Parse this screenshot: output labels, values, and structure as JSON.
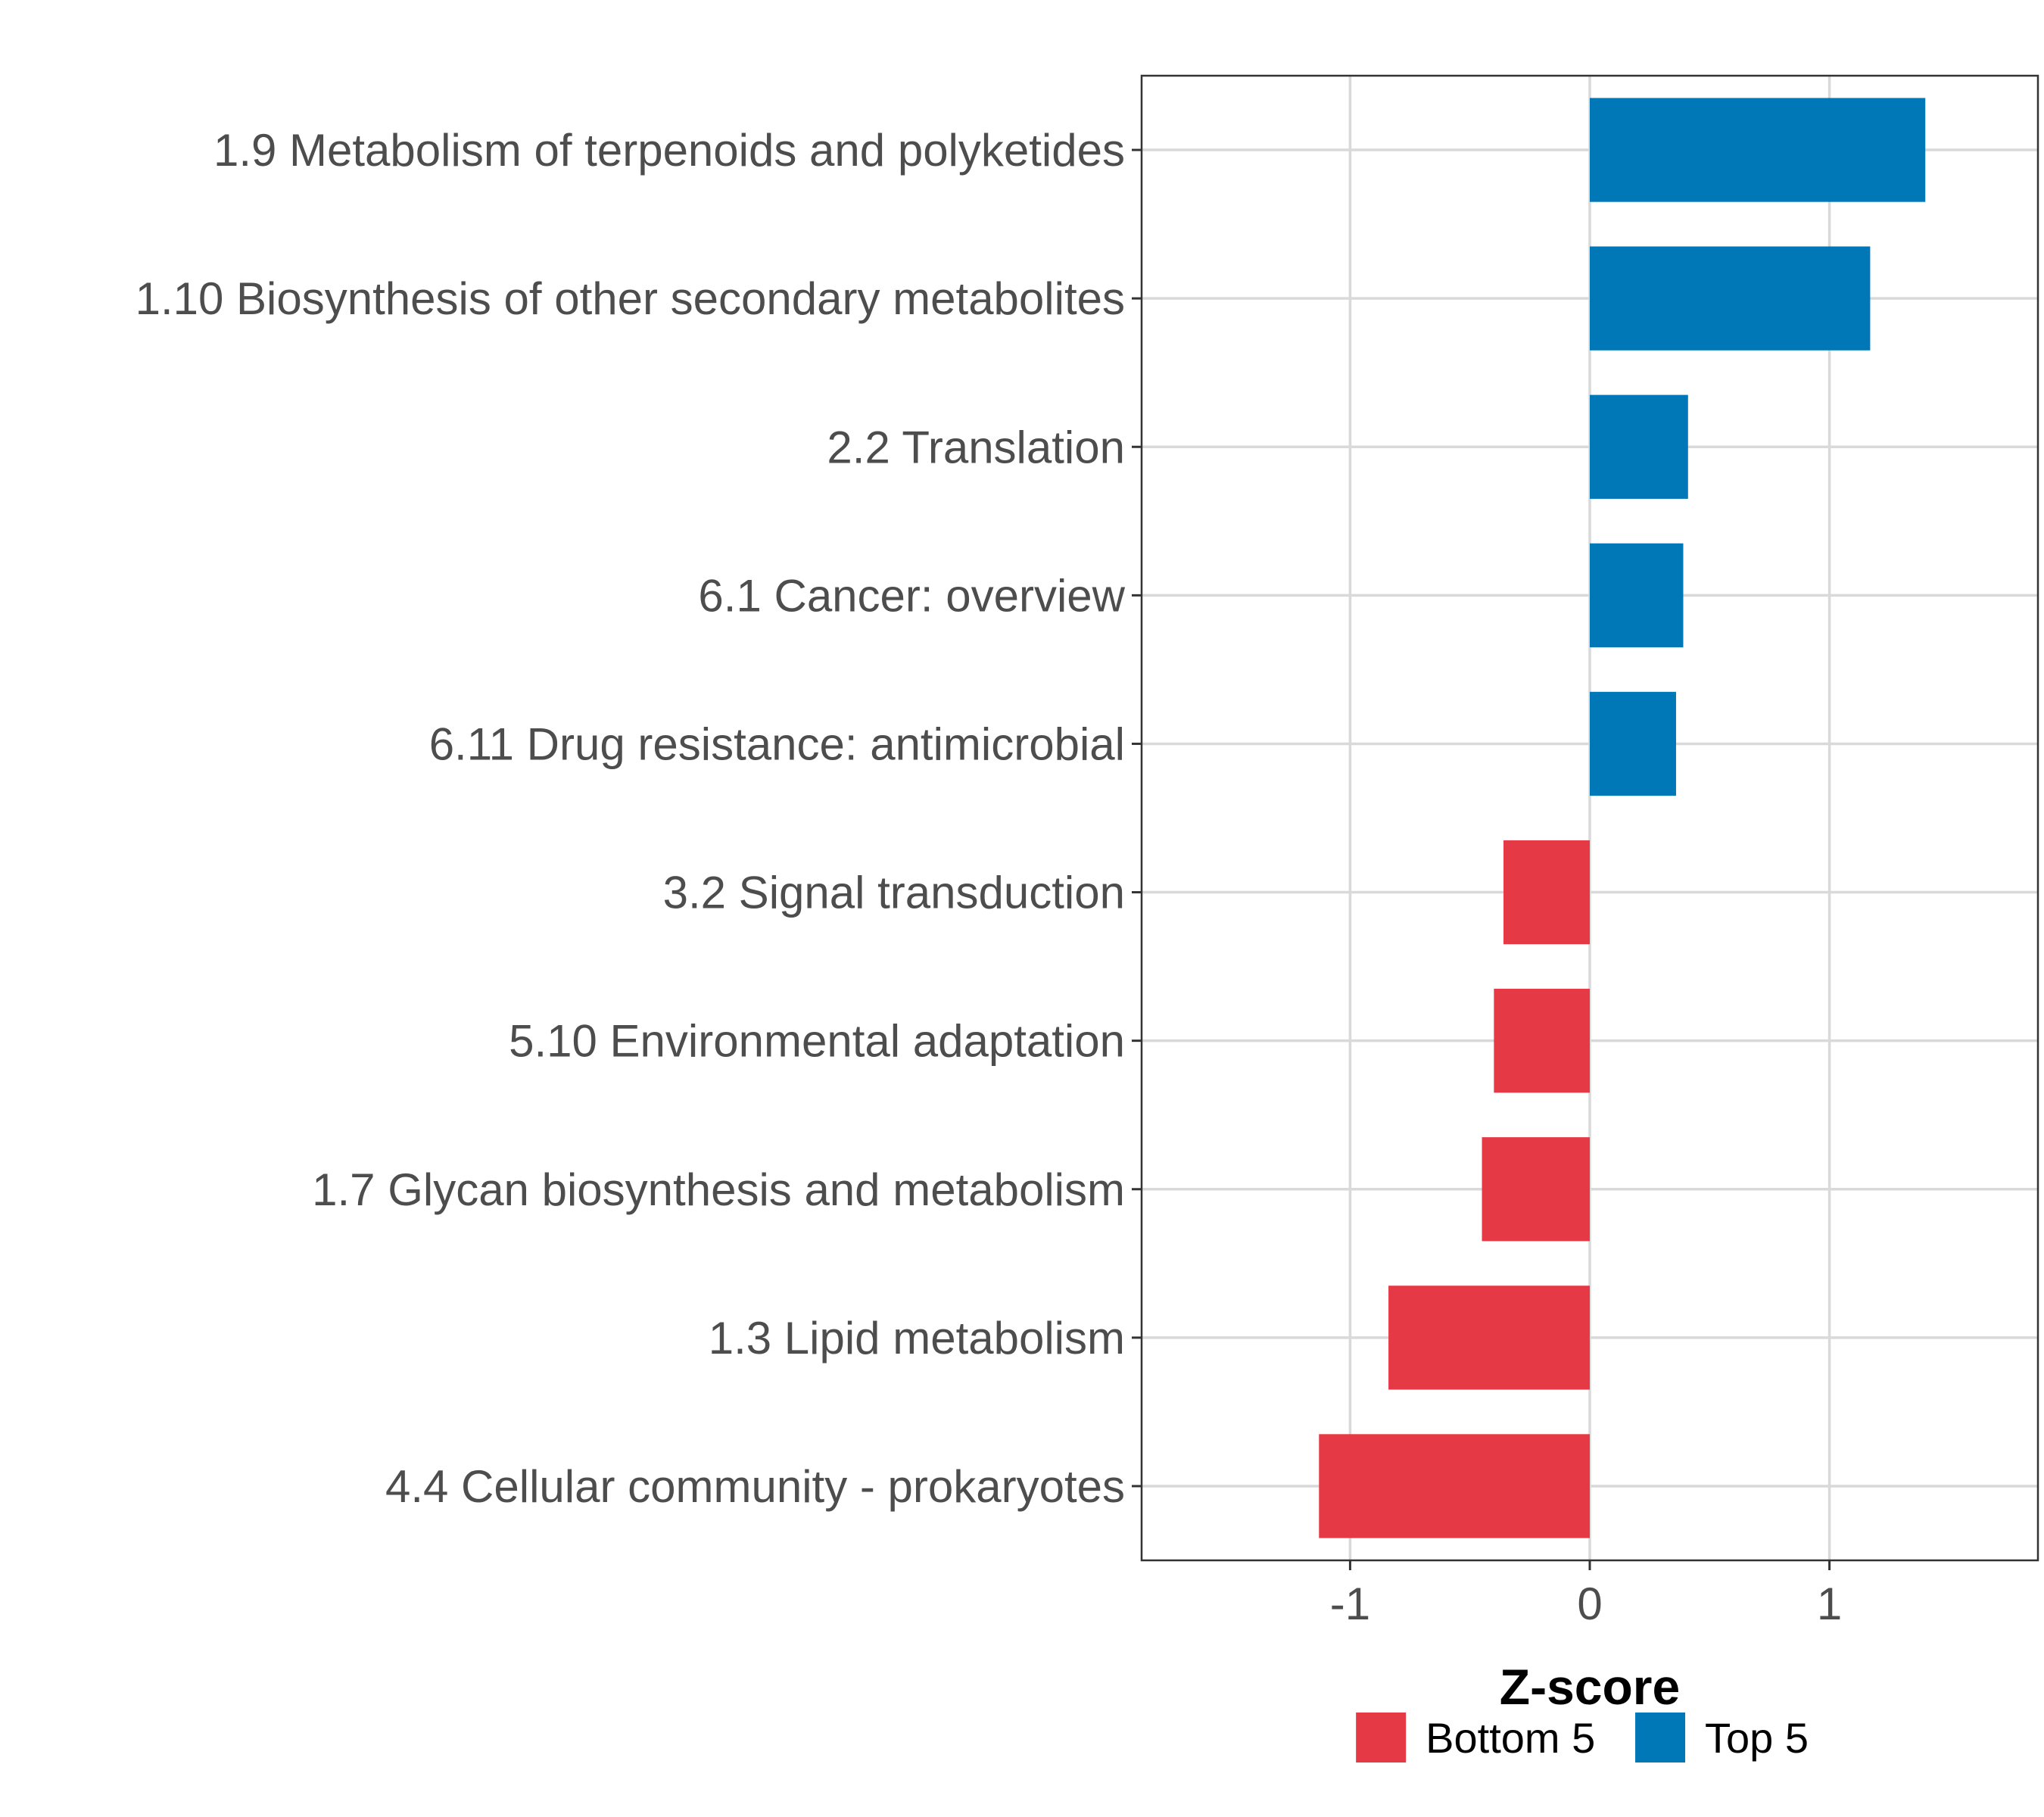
{
  "chart_data": {
    "type": "bar",
    "orientation": "horizontal",
    "title": "",
    "xlabel": "Z-score",
    "ylabel": "",
    "xlim": [
      -1.87,
      1.87
    ],
    "xticks": [
      -1,
      0,
      1
    ],
    "xtick_labels": [
      "-1",
      "0",
      "1"
    ],
    "grid": true,
    "legend_position": "bottom",
    "categories": [
      "1.9 Metabolism of terpenoids and polyketides",
      "1.10 Biosynthesis of other secondary metabolites",
      "2.2 Translation",
      "6.1 Cancer: overview",
      "6.11 Drug resistance: antimicrobial",
      "3.2 Signal transduction",
      "5.10 Environmental adaptation",
      "1.7 Glycan biosynthesis and metabolism",
      "1.3 Lipid metabolism",
      "4.4 Cellular community - prokaryotes"
    ],
    "values": [
      1.4,
      1.17,
      0.41,
      0.39,
      0.36,
      -0.36,
      -0.4,
      -0.45,
      -0.84,
      -1.13
    ],
    "groups": [
      "Top 5",
      "Top 5",
      "Top 5",
      "Top 5",
      "Top 5",
      "Bottom 5",
      "Bottom 5",
      "Bottom 5",
      "Bottom 5",
      "Bottom 5"
    ],
    "legend": [
      {
        "name": "Bottom 5",
        "color": "#E63946"
      },
      {
        "name": "Top 5",
        "color": "#0077B6"
      }
    ]
  }
}
